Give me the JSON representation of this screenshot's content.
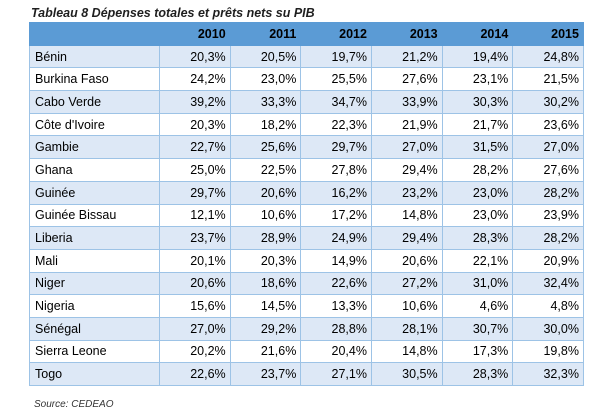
{
  "caption": "Tableau 8 Dépenses totales et prêts nets su PIB",
  "years": [
    "2010",
    "2011",
    "2012",
    "2013",
    "2014",
    "2015"
  ],
  "rows": [
    {
      "country": "Bénin",
      "values": [
        "20,3%",
        "20,5%",
        "19,7%",
        "21,2%",
        "19,4%",
        "24,8%"
      ]
    },
    {
      "country": "Burkina Faso",
      "values": [
        "24,2%",
        "23,0%",
        "25,5%",
        "27,6%",
        "23,1%",
        "21,5%"
      ]
    },
    {
      "country": "Cabo Verde",
      "values": [
        "39,2%",
        "33,3%",
        "34,7%",
        "33,9%",
        "30,3%",
        "30,2%"
      ]
    },
    {
      "country": "Côte d'Ivoire",
      "values": [
        "20,3%",
        "18,2%",
        "22,3%",
        "21,9%",
        "21,7%",
        "23,6%"
      ]
    },
    {
      "country": "Gambie",
      "values": [
        "22,7%",
        "25,6%",
        "29,7%",
        "27,0%",
        "31,5%",
        "27,0%"
      ]
    },
    {
      "country": "Ghana",
      "values": [
        "25,0%",
        "22,5%",
        "27,8%",
        "29,4%",
        "28,2%",
        "27,6%"
      ]
    },
    {
      "country": "Guinée",
      "values": [
        "29,7%",
        "20,6%",
        "16,2%",
        "23,2%",
        "23,0%",
        "28,2%"
      ]
    },
    {
      "country": "Guinée Bissau",
      "values": [
        "12,1%",
        "10,6%",
        "17,2%",
        "14,8%",
        "23,0%",
        "23,9%"
      ]
    },
    {
      "country": "Liberia",
      "values": [
        "23,7%",
        "28,9%",
        "24,9%",
        "29,4%",
        "28,3%",
        "28,2%"
      ]
    },
    {
      "country": "Mali",
      "values": [
        "20,1%",
        "20,3%",
        "14,9%",
        "20,6%",
        "22,1%",
        "20,9%"
      ]
    },
    {
      "country": "Niger",
      "values": [
        "20,6%",
        "18,6%",
        "22,6%",
        "27,2%",
        "31,0%",
        "32,4%"
      ]
    },
    {
      "country": "Nigeria",
      "values": [
        "15,6%",
        "14,5%",
        "13,3%",
        "10,6%",
        "4,6%",
        "4,8%"
      ]
    },
    {
      "country": "Sénégal",
      "values": [
        "27,0%",
        "29,2%",
        "28,8%",
        "28,1%",
        "30,7%",
        "30,0%"
      ]
    },
    {
      "country": "Sierra Leone",
      "values": [
        "20,2%",
        "21,6%",
        "20,4%",
        "14,8%",
        "17,3%",
        "19,8%"
      ]
    },
    {
      "country": "Togo",
      "values": [
        "22,6%",
        "23,7%",
        "27,1%",
        "30,5%",
        "28,3%",
        "32,3%"
      ]
    }
  ],
  "source": "Source: CEDEAO",
  "colors": {
    "header": "#5b9bd5",
    "band": "#dde8f6",
    "border": "#9dc3e6"
  }
}
